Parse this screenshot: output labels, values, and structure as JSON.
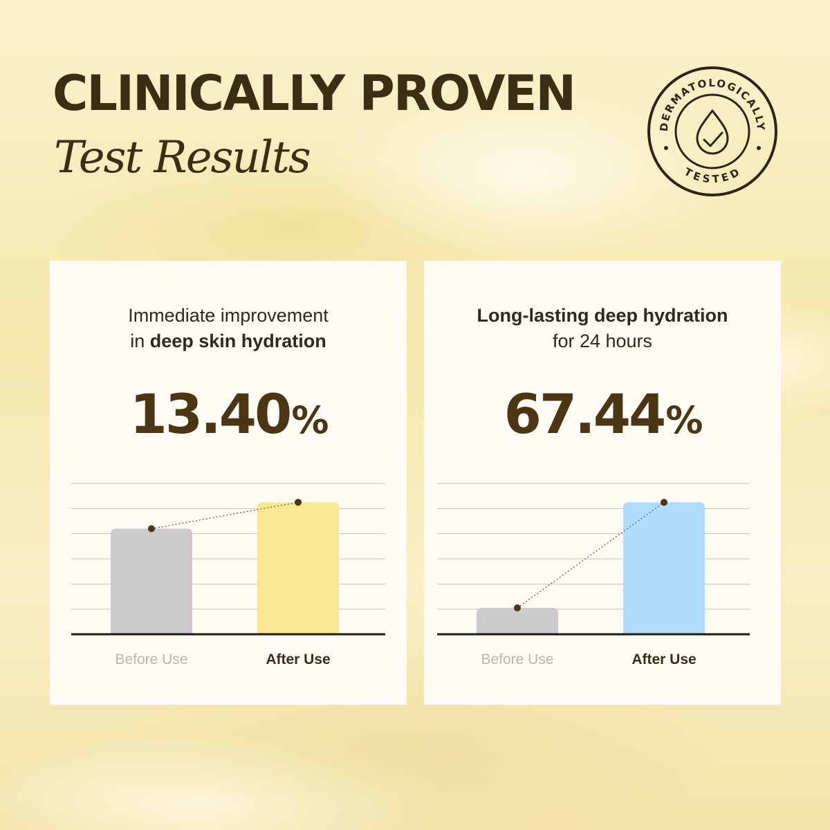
{
  "header": {
    "headline": "CLINICALLY PROVEN",
    "subhead": "Test Results"
  },
  "seal": {
    "top_text": "DERMATOLOGICALLY",
    "bottom_text": "TESTED",
    "icon": "drop-check-icon"
  },
  "colors": {
    "text_dark": "#3b2e12",
    "stat": "#4a3514",
    "before_bar": "#cbcbcb",
    "left_after_bar": "#f8e793",
    "right_after_bar": "#afdcfa",
    "dot": "#4a3514"
  },
  "cards": [
    {
      "caption_line1": "Immediate improvement",
      "caption_line2_prefix": "in ",
      "caption_line2_bold": "deep skin hydration",
      "stat_value": "13.40",
      "stat_unit": "%"
    },
    {
      "caption_line1_bold": "Long-lasting deep hydration",
      "caption_line2": "for  24 hours",
      "stat_value": "67.44",
      "stat_unit": "%"
    }
  ],
  "chart_data": [
    {
      "type": "bar",
      "categories": [
        "Before Use",
        "After Use"
      ],
      "values": [
        2.8,
        3.5
      ],
      "ylim": [
        0,
        4
      ],
      "grid": true,
      "connector": "dotted line between bar tops"
    },
    {
      "type": "bar",
      "categories": [
        "Before Use",
        "After Use"
      ],
      "values": [
        0.7,
        3.5
      ],
      "ylim": [
        0,
        4
      ],
      "grid": true,
      "connector": "dotted line between bar tops"
    }
  ]
}
